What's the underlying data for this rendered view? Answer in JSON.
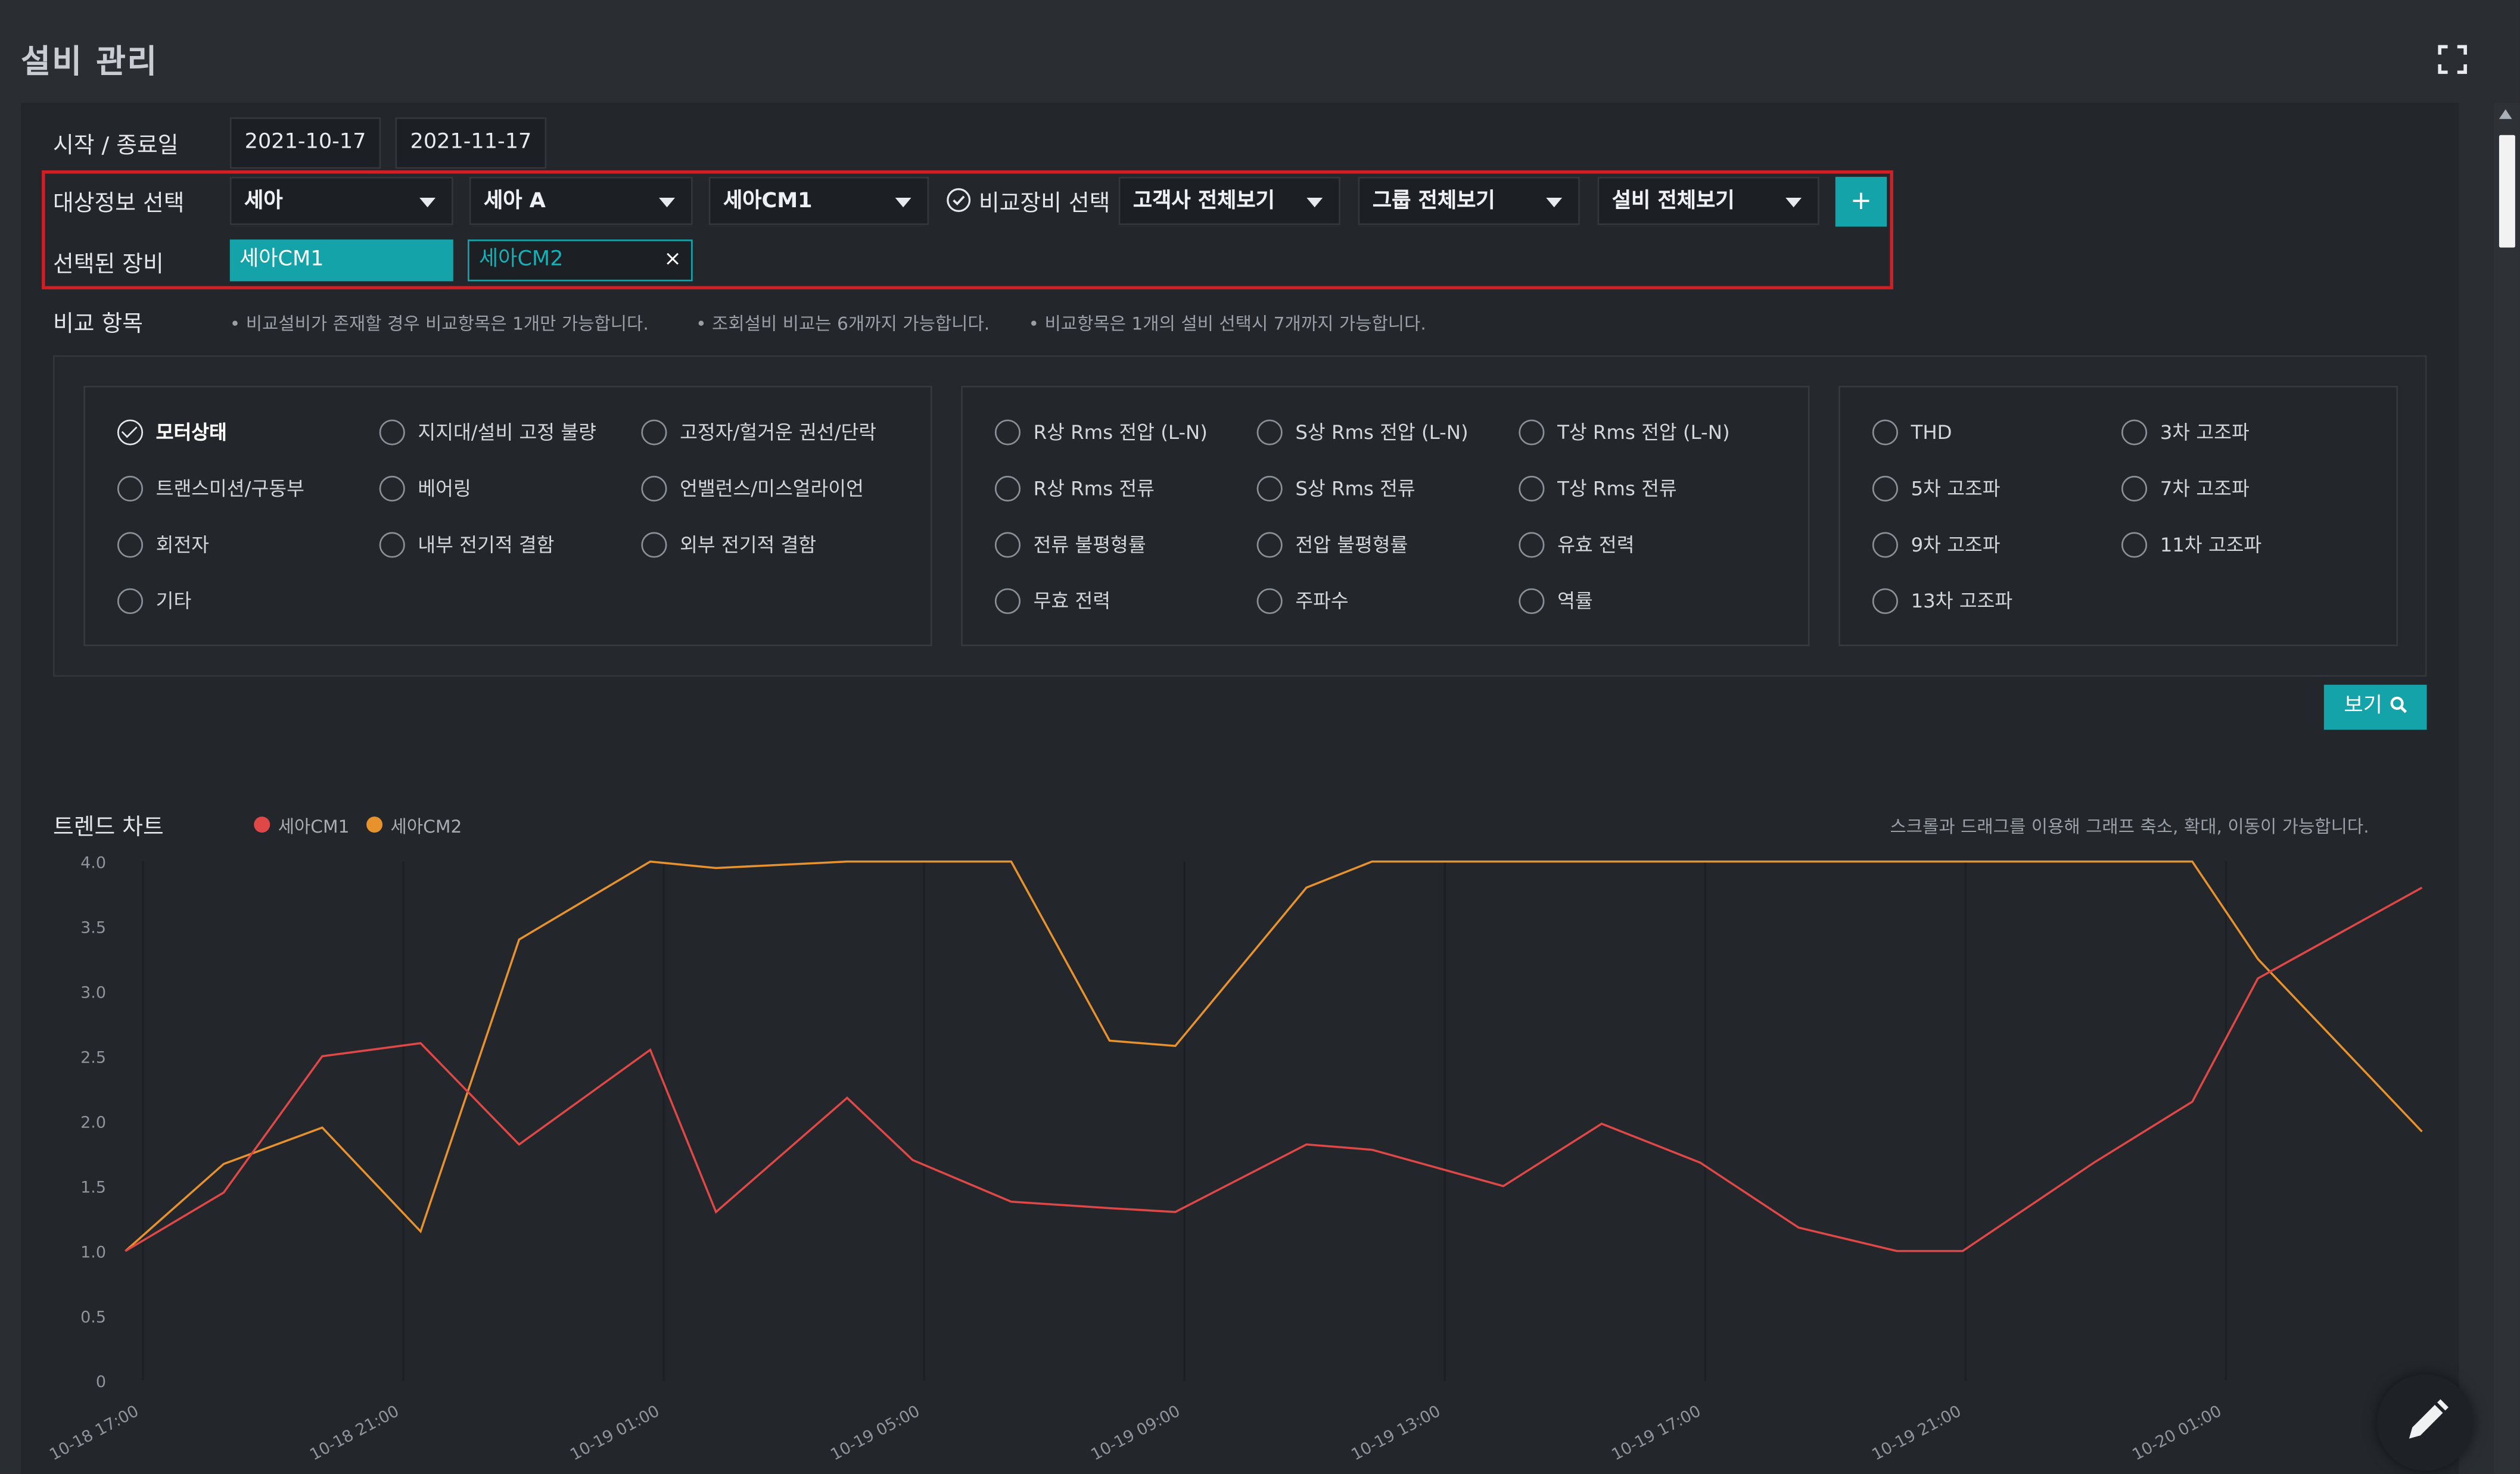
{
  "header": {
    "title": "설비 관리",
    "fullscreen_icon": "fullscreen-icon"
  },
  "filters": {
    "date_label": "시작 / 종료일",
    "start_date": "2021-10-17",
    "end_date": "2021-11-17",
    "target_label": "대상정보 선택",
    "selects": [
      "세아",
      "세아 A",
      "세아CM1"
    ],
    "compare_label": "비교장비 선택",
    "compare_selects": [
      "고객사 전체보기",
      "그룹 전체보기",
      "설비 전체보기"
    ],
    "add_label": "+",
    "selected_label": "선택된 장비",
    "selected_devices": [
      "세아CM1",
      "세아CM2"
    ],
    "remove_label": "×"
  },
  "compare": {
    "label": "비교 항목",
    "notes": [
      "• 비교설비가 존재할 경우 비교항목은 1개만 가능합니다.",
      "• 조회설비 비교는 6개까지 가능합니다.",
      "• 비교항목은 1개의 설비 선택시 7개까지 가능합니다."
    ],
    "groups": [
      [
        "모터상태",
        "지지대/설비 고정 불량",
        "고정자/헐거운 권선/단락",
        "트랜스미션/구동부",
        "베어링",
        "언밸런스/미스얼라이언",
        "회전자",
        "내부 전기적 결함",
        "외부 전기적 결함",
        "기타"
      ],
      [
        "R상 Rms 전압 (L-N)",
        "S상 Rms 전압 (L-N)",
        "T상 Rms 전압 (L-N)",
        "R상 Rms 전류",
        "S상 Rms 전류",
        "T상 Rms 전류",
        "전류 불평형률",
        "전압 불평형률",
        "유효 전력",
        "무효 전력",
        "주파수",
        "역률"
      ],
      [
        "THD",
        "3차 고조파",
        "5차 고조파",
        "7차 고조파",
        "9차 고조파",
        "11차 고조파",
        "13차 고조파"
      ]
    ],
    "checked": "모터상태",
    "view_label": "보기"
  },
  "trend": {
    "label": "트렌드 차트",
    "hint": "스크롤과 드래그를 이용해 그래프 축소, 확대, 이동이 가능합니다."
  },
  "colors": {
    "accent": "#14a3a8",
    "series1": "#e04848",
    "series2": "#e8922e",
    "frame": "#d11f25"
  },
  "chart_data": {
    "type": "line",
    "ylim": [
      0,
      4.0
    ],
    "y_ticks": [
      "0",
      "0.5",
      "1.0",
      "1.5",
      "2.0",
      "2.5",
      "3.0",
      "3.5",
      "4.0"
    ],
    "x_ticks": [
      "10-18 17:00",
      "10-18 21:00",
      "10-19 01:00",
      "10-19 05:00",
      "10-19 09:00",
      "10-19 13:00",
      "10-19 17:00",
      "10-19 21:00",
      "10-20 01:00"
    ],
    "x_hours": [
      0,
      1.5,
      3,
      4.5,
      6,
      8,
      9,
      11,
      12,
      13.5,
      15,
      16,
      18,
      19,
      21,
      22.5,
      24,
      25.5,
      27,
      28,
      30,
      31.5,
      32.5,
      35
    ],
    "series": [
      {
        "name": "세아CM1",
        "values": [
          1.0,
          1.45,
          2.5,
          2.6,
          1.82,
          2.55,
          1.3,
          2.18,
          1.7,
          1.38,
          1.33,
          1.3,
          1.82,
          1.78,
          1.5,
          1.98,
          1.68,
          1.18,
          1.0,
          1.0,
          1.68,
          2.15,
          3.1,
          3.8
        ]
      },
      {
        "name": "세아CM2",
        "values": [
          1.0,
          1.67,
          1.95,
          1.15,
          3.4,
          4.0,
          3.95,
          4.0,
          4.0,
          4.0,
          2.62,
          2.58,
          3.8,
          4.0,
          4.0,
          4.0,
          4.0,
          4.0,
          4.0,
          4.0,
          4.0,
          4.0,
          3.25,
          1.92
        ]
      }
    ]
  }
}
